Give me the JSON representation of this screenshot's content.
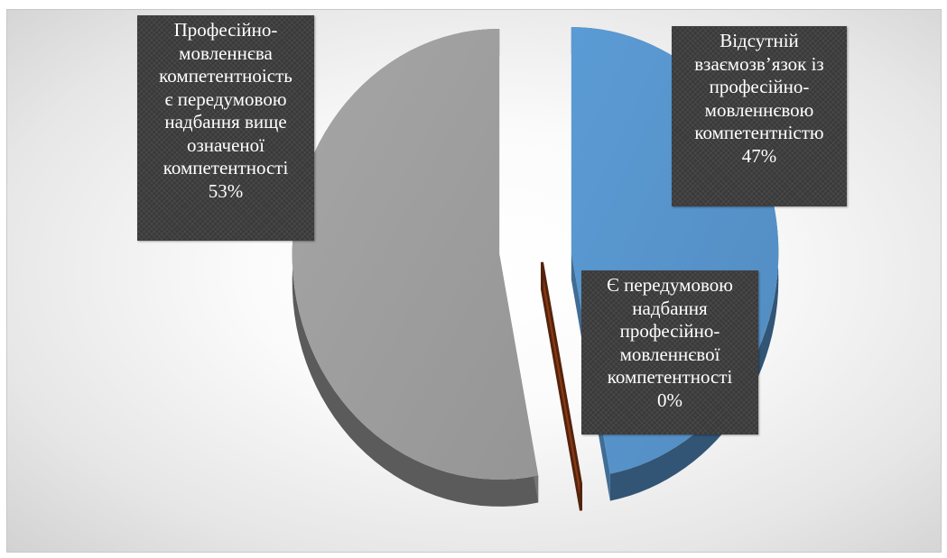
{
  "chart_data": {
    "type": "pie",
    "style": "3d-exploded",
    "title": "",
    "slices": [
      {
        "label_lines": [
          "Відсутній",
          "взаємозв’язок із",
          "професійно-",
          "мовленнєвою",
          "компетентністю"
        ],
        "percent_text": "47%",
        "value": 47,
        "color": "#5b9bd5"
      },
      {
        "label_lines": [
          "Є передумовою",
          "надбання",
          "професійно-",
          "мовленнєвої",
          "компетентності"
        ],
        "percent_text": "0%",
        "value": 0,
        "color": "#8b3a14"
      },
      {
        "label_lines": [
          "Професійно-",
          "мовленнєва",
          "компетентноість",
          "є передумовою",
          "надбання вище",
          "означеної",
          "компетентності"
        ],
        "percent_text": "53%",
        "value": 53,
        "color": "#a6a6a6"
      }
    ],
    "legend": "none",
    "data_labels": "category name and percentage, dark callout boxes"
  }
}
